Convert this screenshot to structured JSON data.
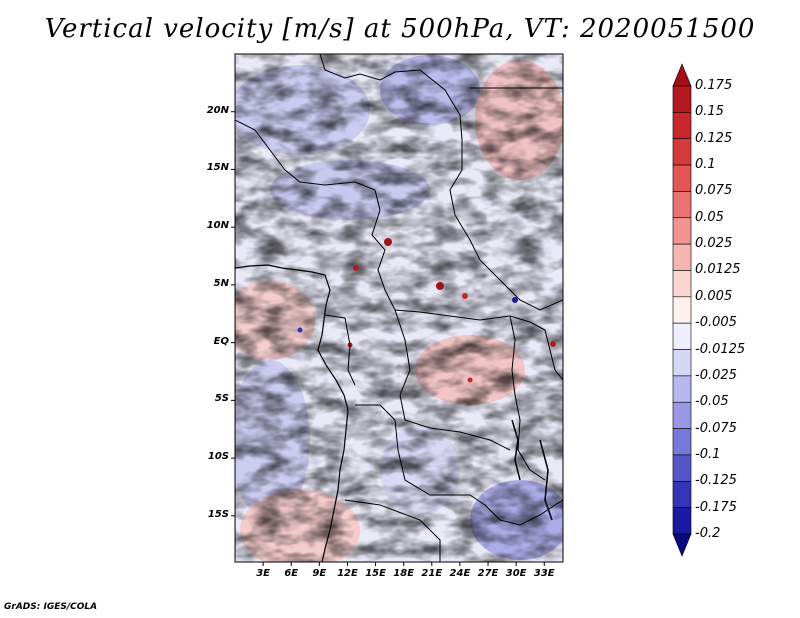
{
  "title": "Vertical velocity [m/s] at 500hPa, VT: 2020051500",
  "footer": "GrADS: IGES/COLA",
  "map": {
    "region": "Central Africa",
    "lat_range": [
      -19,
      25
    ],
    "lon_range": [
      0,
      35
    ],
    "lat_labels": [
      "20N",
      "15N",
      "10N",
      "5N",
      "EQ",
      "5S",
      "10S",
      "15S"
    ],
    "lat_values": [
      20,
      15,
      10,
      5,
      0,
      -5,
      -10,
      -15
    ],
    "lon_labels": [
      "3E",
      "6E",
      "9E",
      "12E",
      "15E",
      "18E",
      "21E",
      "24E",
      "27E",
      "30E",
      "33E"
    ],
    "lon_values": [
      3,
      6,
      9,
      12,
      15,
      18,
      21,
      24,
      27,
      30,
      33
    ]
  },
  "colorbar": {
    "labels": [
      "0.175",
      "0.15",
      "0.125",
      "0.1",
      "0.075",
      "0.05",
      "0.025",
      "0.0125",
      "0.005",
      "-0.005",
      "-0.0125",
      "-0.025",
      "-0.05",
      "-0.075",
      "-0.1",
      "-0.125",
      "-0.175",
      "-0.2"
    ],
    "colors": [
      "#a50f15",
      "#b51820",
      "#c8282d",
      "#d63a3c",
      "#e25656",
      "#ea7371",
      "#f19491",
      "#f7b5b2",
      "#fbd6d3",
      "#fdf0ee",
      "#eeeefc",
      "#d6d6f6",
      "#b8b8ee",
      "#9898e4",
      "#7878d8",
      "#5656c8",
      "#3434b4",
      "#1a1aa0",
      "#0a0a80"
    ]
  },
  "colors": {
    "accent_red": "#d6343a",
    "accent_blue": "#4444d0",
    "border": "#000000"
  }
}
